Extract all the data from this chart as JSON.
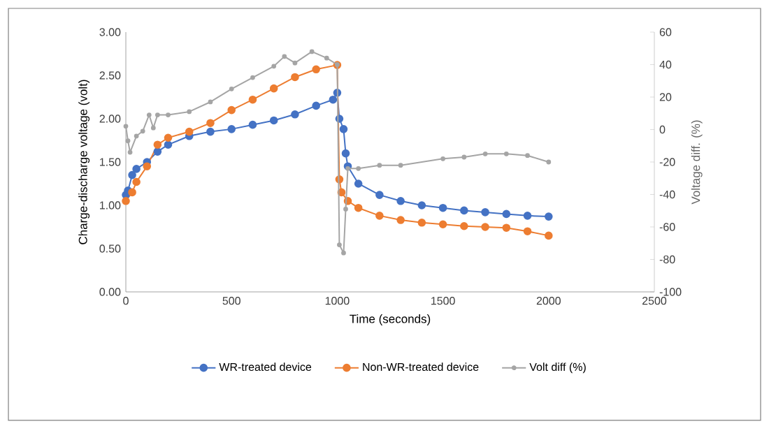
{
  "chart_data": {
    "type": "line",
    "xlabel": "Time (seconds)",
    "ylabel": "Charge-discharge voltage (volt)",
    "y2label": "Voltage diff. (%)",
    "xlim": [
      0,
      2500
    ],
    "xticks": [
      0,
      500,
      1000,
      1500,
      2000,
      2500
    ],
    "ylim": [
      0,
      3
    ],
    "yticks": [
      {
        "value": 0,
        "label": "0.00"
      },
      {
        "value": 0.5,
        "label": "0.50"
      },
      {
        "value": 1,
        "label": "1.00"
      },
      {
        "value": 1.5,
        "label": "1.50"
      },
      {
        "value": 2,
        "label": "2.00"
      },
      {
        "value": 2.5,
        "label": "2.50"
      },
      {
        "value": 3,
        "label": "3.00"
      }
    ],
    "y2lim": [
      -100,
      60
    ],
    "y2ticks": [
      -100,
      -80,
      -60,
      -40,
      -20,
      0,
      20,
      40,
      60
    ],
    "legend": "bottom",
    "marker": "circle",
    "grid": false,
    "series": [
      {
        "name": "WR-treated device",
        "color": "#4472c4",
        "x": [
          0,
          10,
          30,
          50,
          100,
          150,
          200,
          300,
          400,
          500,
          600,
          700,
          800,
          900,
          980,
          1000,
          1010,
          1030,
          1040,
          1050,
          1100,
          1200,
          1300,
          1400,
          1500,
          1600,
          1700,
          1800,
          1900,
          2000
        ],
        "values": [
          1.12,
          1.17,
          1.35,
          1.42,
          1.5,
          1.62,
          1.7,
          1.8,
          1.85,
          1.88,
          1.93,
          1.98,
          2.05,
          2.15,
          2.22,
          2.3,
          2.0,
          1.88,
          1.6,
          1.45,
          1.25,
          1.12,
          1.05,
          1.0,
          0.97,
          0.94,
          0.92,
          0.9,
          0.88,
          0.87
        ]
      },
      {
        "name": "Non-WR-treated device",
        "color": "#ed7d31",
        "x": [
          0,
          30,
          50,
          100,
          150,
          200,
          300,
          400,
          500,
          600,
          700,
          800,
          900,
          1000,
          1010,
          1020,
          1050,
          1100,
          1200,
          1300,
          1400,
          1500,
          1600,
          1700,
          1800,
          1900,
          2000
        ],
        "values": [
          1.05,
          1.15,
          1.27,
          1.45,
          1.7,
          1.78,
          1.85,
          1.95,
          2.1,
          2.22,
          2.35,
          2.48,
          2.57,
          2.62,
          1.3,
          1.15,
          1.05,
          0.97,
          0.88,
          0.83,
          0.8,
          0.78,
          0.76,
          0.75,
          0.74,
          0.7,
          0.65
        ]
      },
      {
        "name": "Volt diff (%)",
        "color": "#a5a5a5",
        "axis": "y2",
        "x": [
          0,
          10,
          20,
          50,
          80,
          110,
          130,
          150,
          200,
          300,
          400,
          500,
          600,
          700,
          750,
          800,
          880,
          950,
          1000,
          1010,
          1030,
          1040,
          1050,
          1100,
          1200,
          1300,
          1500,
          1600,
          1700,
          1800,
          1900,
          2000
        ],
        "values": [
          2,
          -7,
          -14,
          -4,
          -1,
          9,
          1,
          9,
          9,
          11,
          17,
          25,
          32,
          39,
          45,
          41,
          48,
          44,
          40,
          -71,
          -76,
          -49,
          -24,
          -24,
          -22,
          -22,
          -18,
          -17,
          -15,
          -15,
          -16,
          -20
        ]
      }
    ]
  }
}
